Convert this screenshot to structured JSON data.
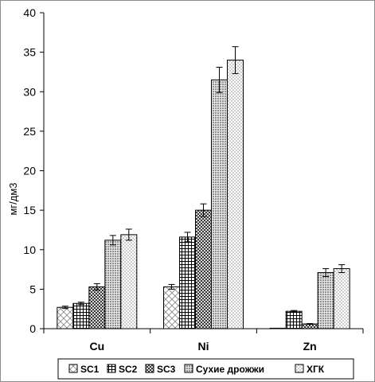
{
  "chart_data": {
    "type": "bar",
    "title": "",
    "xlabel": "",
    "ylabel": "мг/дм3",
    "ylim": [
      0,
      40
    ],
    "yticks": [
      0,
      5,
      10,
      15,
      20,
      25,
      30,
      35,
      40
    ],
    "grid": false,
    "legend_position": "bottom",
    "categories": [
      "Cu",
      "Ni",
      "Zn"
    ],
    "series": [
      {
        "name": "SC1",
        "pattern": "diagonal-cross",
        "color": "#808080",
        "values": [
          2.7,
          5.3,
          0.05
        ],
        "errors": [
          0.15,
          0.3,
          0.0
        ]
      },
      {
        "name": "SC2",
        "pattern": "grid",
        "color": "#000000",
        "values": [
          3.2,
          11.6,
          2.2
        ],
        "errors": [
          0.15,
          0.6,
          0.1
        ]
      },
      {
        "name": "SC3",
        "pattern": "checker",
        "color": "#000000",
        "values": [
          5.3,
          15.0,
          0.6
        ],
        "errors": [
          0.4,
          0.8,
          0.05
        ]
      },
      {
        "name": "Сухие дрожжи",
        "pattern": "dense-dots",
        "color": "#000000",
        "values": [
          11.2,
          31.5,
          7.1
        ],
        "errors": [
          0.6,
          1.6,
          0.5
        ]
      },
      {
        "name": "ХГК",
        "pattern": "light-dots",
        "color": "#000000",
        "values": [
          11.9,
          34.0,
          7.6
        ],
        "errors": [
          0.7,
          1.7,
          0.5
        ]
      }
    ]
  }
}
